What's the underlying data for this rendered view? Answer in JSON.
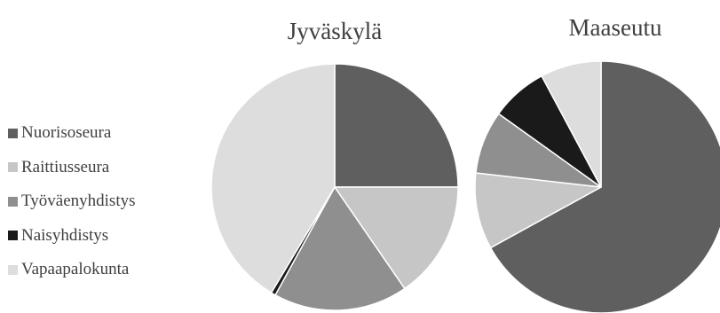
{
  "chart_data": [
    {
      "type": "pie",
      "title": "Jyväskylä",
      "categories": [
        "Nuorisoseura",
        "Raittiusseura",
        "Työväenyhdistys",
        "Naisyhdistys",
        "Vapaapalokunta"
      ],
      "values": [
        25.0,
        15.4,
        17.6,
        0.6,
        41.4
      ]
    },
    {
      "type": "pie",
      "title": "Maaseutu",
      "categories": [
        "Nuorisoseura",
        "Raittiusseura",
        "Työväenyhdistys",
        "Naisyhdistys",
        "Vapaapalokunta"
      ],
      "values": [
        67.0,
        9.8,
        8.1,
        7.3,
        7.8
      ]
    }
  ],
  "legend": {
    "placement": "left",
    "items": [
      {
        "label": "Nuorisoseura",
        "color": "#5f5f5f"
      },
      {
        "label": "Raittiusseura",
        "color": "#c6c6c6"
      },
      {
        "label": "Työväenyhdistys",
        "color": "#8f8f8f"
      },
      {
        "label": "Naisyhdistys",
        "color": "#1a1a1a"
      },
      {
        "label": "Vapaapalokunta",
        "color": "#dddddd"
      }
    ]
  }
}
